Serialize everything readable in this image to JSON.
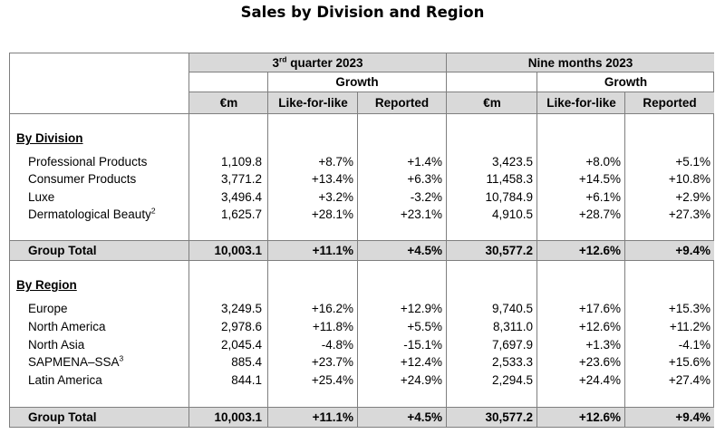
{
  "title": "Sales by Division and Region",
  "header": {
    "q3_quarter_num": "3",
    "q3_quarter_suffix": "rd",
    "q3_quarter_rest": " quarter 2023",
    "nine_months": "Nine months 2023",
    "growth": "Growth",
    "col_em": "€m",
    "col_lfl": "Like-for-like",
    "col_reported": "Reported"
  },
  "division": {
    "heading": "By Division",
    "rows": [
      {
        "label": "Professional Products",
        "sup": "",
        "q3_em": "1,109.8",
        "q3_lfl": "+8.7%",
        "q3_rep": "+1.4%",
        "nm_em": "3,423.5",
        "nm_lfl": "+8.0%",
        "nm_rep": "+5.1%"
      },
      {
        "label": "Consumer Products",
        "sup": "",
        "q3_em": "3,771.2",
        "q3_lfl": "+13.4%",
        "q3_rep": "+6.3%",
        "nm_em": "11,458.3",
        "nm_lfl": "+14.5%",
        "nm_rep": "+10.8%"
      },
      {
        "label": "Luxe",
        "sup": "",
        "q3_em": "3,496.4",
        "q3_lfl": "+3.2%",
        "q3_rep": "-3.2%",
        "nm_em": "10,784.9",
        "nm_lfl": "+6.1%",
        "nm_rep": "+2.9%"
      },
      {
        "label": "Dermatological Beauty",
        "sup": "2",
        "q3_em": "1,625.7",
        "q3_lfl": "+28.1%",
        "q3_rep": "+23.1%",
        "nm_em": "4,910.5",
        "nm_lfl": "+28.7%",
        "nm_rep": "+27.3%"
      }
    ],
    "total": {
      "label": "Group Total",
      "q3_em": "10,003.1",
      "q3_lfl": "+11.1%",
      "q3_rep": "+4.5%",
      "nm_em": "30,577.2",
      "nm_lfl": "+12.6%",
      "nm_rep": "+9.4%"
    }
  },
  "region": {
    "heading": "By Region",
    "rows": [
      {
        "label": "Europe",
        "sup": "",
        "q3_em": "3,249.5",
        "q3_lfl": "+16.2%",
        "q3_rep": "+12.9%",
        "nm_em": "9,740.5",
        "nm_lfl": "+17.6%",
        "nm_rep": "+15.3%"
      },
      {
        "label": "North America",
        "sup": "",
        "q3_em": "2,978.6",
        "q3_lfl": "+11.8%",
        "q3_rep": "+5.5%",
        "nm_em": "8,311.0",
        "nm_lfl": "+12.6%",
        "nm_rep": "+11.2%"
      },
      {
        "label": "North Asia",
        "sup": "",
        "q3_em": "2,045.4",
        "q3_lfl": "-4.8%",
        "q3_rep": "-15.1%",
        "nm_em": "7,697.9",
        "nm_lfl": "+1.3%",
        "nm_rep": "-4.1%"
      },
      {
        "label": "SAPMENA–SSA",
        "sup": "3",
        "q3_em": "885.4",
        "q3_lfl": "+23.7%",
        "q3_rep": "+12.4%",
        "nm_em": "2,533.3",
        "nm_lfl": "+23.6%",
        "nm_rep": "+15.6%"
      },
      {
        "label": "Latin America",
        "sup": "",
        "q3_em": "844.1",
        "q3_lfl": "+25.4%",
        "q3_rep": "+24.9%",
        "nm_em": "2,294.5",
        "nm_lfl": "+24.4%",
        "nm_rep": "+27.4%"
      }
    ],
    "total": {
      "label": "Group Total",
      "q3_em": "10,003.1",
      "q3_lfl": "+11.1%",
      "q3_rep": "+4.5%",
      "nm_em": "30,577.2",
      "nm_lfl": "+12.6%",
      "nm_rep": "+9.4%"
    }
  },
  "colors": {
    "shade": "#d9d9d9",
    "border": "#7f7f7f"
  }
}
